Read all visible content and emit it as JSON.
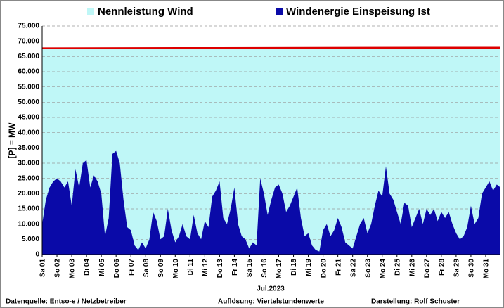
{
  "chart_data": {
    "type": "area",
    "y_label": "[P] = MW",
    "x_label": "Jul.2023",
    "footer": [
      "Datenquelle: Entso-e  / Netzbetreiber",
      "Auflösung: Viertelstundenwerte",
      "Darstellung:  Rolf Schuster"
    ],
    "ylim": [
      0,
      75000
    ],
    "yticks": [
      0,
      {
        "value": 5000,
        "label": "5.000"
      },
      {
        "value": 10000,
        "label": "10.000"
      },
      {
        "value": 15000,
        "label": "15.000"
      },
      {
        "value": 20000,
        "label": "20.000"
      },
      {
        "value": 25000,
        "label": "25.000"
      },
      {
        "value": 30000,
        "label": "30.000"
      },
      {
        "value": 35000,
        "label": "35.000"
      },
      {
        "value": 40000,
        "label": "40.000"
      },
      {
        "value": 45000,
        "label": "45.000"
      },
      {
        "value": 50000,
        "label": "50.000"
      },
      {
        "value": 55000,
        "label": "55.000"
      },
      {
        "value": 60000,
        "label": "60.000"
      },
      {
        "value": 65000,
        "label": "65.000"
      },
      {
        "value": 70000,
        "label": "70.000"
      },
      {
        "value": 75000,
        "label": "75.000"
      }
    ],
    "xlim": [
      0,
      31
    ],
    "xticks": [
      {
        "value": 0,
        "label": "Sa 01"
      },
      {
        "value": 1,
        "label": "So 02"
      },
      {
        "value": 2,
        "label": "Mo 03"
      },
      {
        "value": 3,
        "label": "Di 04"
      },
      {
        "value": 4,
        "label": "Mi 05"
      },
      {
        "value": 5,
        "label": "Do 06"
      },
      {
        "value": 6,
        "label": "Fr 07"
      },
      {
        "value": 7,
        "label": "Sa 08"
      },
      {
        "value": 8,
        "label": "So 09"
      },
      {
        "value": 9,
        "label": "Mo 10"
      },
      {
        "value": 10,
        "label": "Di 11"
      },
      {
        "value": 11,
        "label": "Mi 12"
      },
      {
        "value": 12,
        "label": "Do 13"
      },
      {
        "value": 13,
        "label": "Fr 14"
      },
      {
        "value": 14,
        "label": "Sa 15"
      },
      {
        "value": 15,
        "label": "So 16"
      },
      {
        "value": 16,
        "label": "Mo 17"
      },
      {
        "value": 17,
        "label": "Di 18"
      },
      {
        "value": 18,
        "label": "Mi 19"
      },
      {
        "value": 19,
        "label": "Do 20"
      },
      {
        "value": 20,
        "label": "Fr 21"
      },
      {
        "value": 21,
        "label": "Sa 22"
      },
      {
        "value": 22,
        "label": "So 23"
      },
      {
        "value": 23,
        "label": "Mo 24"
      },
      {
        "value": 24,
        "label": "Di 25"
      },
      {
        "value": 25,
        "label": "Mi 26"
      },
      {
        "value": 26,
        "label": "Do 27"
      },
      {
        "value": 27,
        "label": "Fr 28"
      },
      {
        "value": 28,
        "label": "Sa 29"
      },
      {
        "value": 29,
        "label": "So 30"
      },
      {
        "value": 30,
        "label": "Mo 31"
      }
    ],
    "grid": true,
    "series": [
      {
        "name": "Nennleistung Wind",
        "color": "#bff7f7",
        "line_color": "#dd0000",
        "x": [
          0,
          12,
          26,
          31
        ],
        "values": [
          67700,
          67800,
          67900,
          67900
        ]
      },
      {
        "name": "Windenergie Einspeisung Ist",
        "color": "#0a0aa8",
        "x": [
          0,
          0.25,
          0.5,
          0.75,
          1,
          1.25,
          1.5,
          1.75,
          2,
          2.25,
          2.5,
          2.75,
          3,
          3.25,
          3.5,
          3.75,
          4,
          4.25,
          4.5,
          4.75,
          5,
          5.25,
          5.5,
          5.75,
          6,
          6.25,
          6.5,
          6.75,
          7,
          7.25,
          7.5,
          7.75,
          8,
          8.25,
          8.5,
          8.75,
          9,
          9.25,
          9.5,
          9.75,
          10,
          10.25,
          10.5,
          10.75,
          11,
          11.25,
          11.5,
          11.75,
          12,
          12.25,
          12.5,
          12.75,
          13,
          13.25,
          13.5,
          13.75,
          14,
          14.25,
          14.5,
          14.75,
          15,
          15.25,
          15.5,
          15.75,
          16,
          16.25,
          16.5,
          16.75,
          17,
          17.25,
          17.5,
          17.75,
          18,
          18.25,
          18.5,
          18.75,
          19,
          19.25,
          19.5,
          19.75,
          20,
          20.25,
          20.5,
          20.75,
          21,
          21.25,
          21.5,
          21.75,
          22,
          22.25,
          22.5,
          22.75,
          23,
          23.25,
          23.5,
          23.75,
          24,
          24.25,
          24.5,
          24.75,
          25,
          25.25,
          25.5,
          25.75,
          26,
          26.25,
          26.5,
          26.75,
          27,
          27.25,
          27.5,
          27.75,
          28,
          28.25,
          28.5,
          28.75,
          29,
          29.25,
          29.5,
          29.75,
          30,
          30.25,
          30.5,
          30.75,
          31
        ],
        "values": [
          10000,
          18000,
          22000,
          24000,
          25000,
          24000,
          22000,
          24000,
          16000,
          28000,
          22000,
          30000,
          31000,
          22000,
          26000,
          24000,
          20000,
          6000,
          12000,
          33000,
          34000,
          30000,
          18000,
          9000,
          8000,
          3000,
          1500,
          4000,
          2000,
          5000,
          14000,
          11000,
          5000,
          6000,
          15000,
          8000,
          4000,
          6000,
          10000,
          6000,
          5000,
          13000,
          7000,
          5000,
          11000,
          9000,
          19000,
          21000,
          24000,
          12000,
          10000,
          15000,
          22000,
          10000,
          6000,
          5000,
          2000,
          4000,
          3000,
          25000,
          20000,
          13000,
          18000,
          22000,
          23000,
          20000,
          14000,
          16000,
          19000,
          22000,
          12000,
          6000,
          7000,
          3000,
          1500,
          1000,
          8000,
          10000,
          6000,
          8000,
          12000,
          9000,
          4000,
          3000,
          2000,
          6000,
          10000,
          12000,
          7000,
          10000,
          16000,
          21000,
          19000,
          29000,
          20000,
          18000,
          14000,
          10000,
          17000,
          16000,
          9000,
          12000,
          15000,
          10000,
          15000,
          13000,
          15000,
          11000,
          14000,
          12000,
          14000,
          10000,
          7000,
          5000,
          6000,
          9000,
          16000,
          10000,
          12000,
          20000,
          22000,
          24000,
          21000,
          23000,
          22000
        ]
      }
    ]
  }
}
